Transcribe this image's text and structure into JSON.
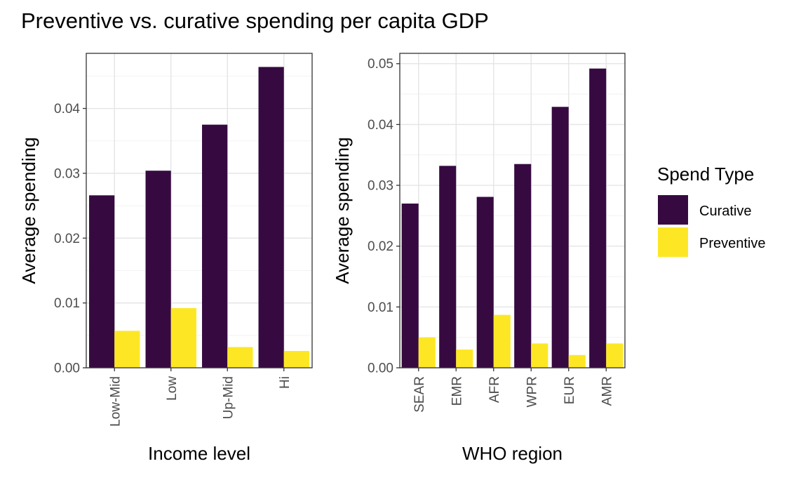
{
  "title": "Preventive vs. curative spending per capita GDP",
  "colors": {
    "curative": "#360a41",
    "preventive": "#fde725"
  },
  "legend": {
    "title": "Spend Type",
    "items": [
      {
        "label": "Curative",
        "color": "#360a41"
      },
      {
        "label": "Preventive",
        "color": "#fde725"
      }
    ]
  },
  "chart_data": [
    {
      "type": "bar",
      "xlabel": "Income level",
      "ylabel": "Average spending",
      "ylim": [
        0,
        0.0485
      ],
      "yticks": [
        0.0,
        0.01,
        0.02,
        0.03,
        0.04
      ],
      "ytick_labels": [
        "0.00",
        "0.01",
        "0.02",
        "0.03",
        "0.04"
      ],
      "categories": [
        "Low-Mid",
        "Low",
        "Up-Mid",
        "Hi"
      ],
      "series": [
        {
          "name": "Curative",
          "values": [
            0.0266,
            0.0304,
            0.0375,
            0.0464
          ]
        },
        {
          "name": "Preventive",
          "values": [
            0.0057,
            0.0092,
            0.0032,
            0.0026
          ]
        }
      ]
    },
    {
      "type": "bar",
      "xlabel": "WHO region",
      "ylabel": "Average spending",
      "ylim": [
        0,
        0.0517
      ],
      "yticks": [
        0.0,
        0.01,
        0.02,
        0.03,
        0.04,
        0.05
      ],
      "ytick_labels": [
        "0.00",
        "0.01",
        "0.02",
        "0.03",
        "0.04",
        "0.05"
      ],
      "categories": [
        "SEAR",
        "EMR",
        "AFR",
        "WPR",
        "EUR",
        "AMR"
      ],
      "series": [
        {
          "name": "Curative",
          "values": [
            0.027,
            0.0332,
            0.0281,
            0.0335,
            0.0429,
            0.0492
          ]
        },
        {
          "name": "Preventive",
          "values": [
            0.005,
            0.003,
            0.0087,
            0.004,
            0.0021,
            0.004
          ]
        }
      ]
    }
  ]
}
